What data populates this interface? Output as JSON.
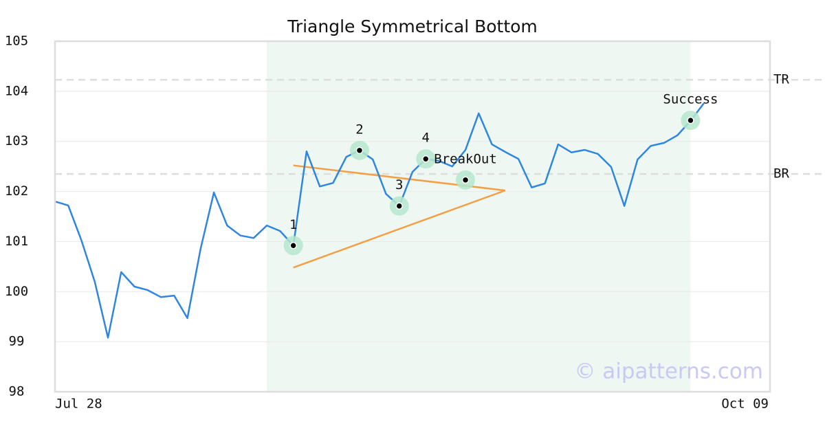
{
  "chart_data": {
    "type": "line",
    "title": "Triangle Symmetrical Bottom",
    "categories": [
      "Jul 28",
      null,
      null,
      null,
      null,
      null,
      null,
      null,
      null,
      null,
      null,
      null,
      null,
      null,
      null,
      null,
      null,
      null,
      null,
      null,
      null,
      null,
      null,
      null,
      null,
      null,
      null,
      null,
      null,
      null,
      null,
      null,
      null,
      null,
      null,
      null,
      null,
      null,
      null,
      null,
      null,
      null,
      null,
      null,
      null,
      null,
      null,
      null,
      null,
      null,
      null,
      null,
      null,
      null,
      "Oct 09"
    ],
    "series": [
      {
        "color": "#2e86de",
        "values": [
          101.8,
          101.72,
          101.02,
          100.2,
          99.08,
          100.39,
          100.1,
          100.03,
          99.89,
          99.92,
          99.47,
          100.86,
          101.98,
          101.32,
          101.12,
          101.07,
          101.32,
          101.21,
          100.92,
          102.8,
          102.1,
          102.17,
          102.69,
          102.82,
          102.64,
          101.95,
          101.71,
          102.39,
          102.65,
          102.61,
          102.5,
          102.83,
          103.56,
          102.94,
          102.79,
          102.65,
          102.08,
          102.16,
          102.94,
          102.78,
          102.83,
          102.75,
          102.49,
          101.71,
          102.64,
          102.91,
          102.97,
          103.12,
          103.41,
          103.76,
          null,
          null,
          null,
          null,
          null
        ]
      }
    ],
    "ylim": [
      98,
      105
    ],
    "yticks": [
      98,
      99,
      100,
      101,
      102,
      103,
      104,
      105
    ],
    "grid": true,
    "highlight": [
      16,
      48
    ],
    "highlight_color": "#eef7f2",
    "reference_lines": [
      {
        "label": "TR",
        "value": 104.23
      },
      {
        "label": "BR",
        "value": 102.35
      }
    ],
    "trend_lines": {
      "color": "#f59e42",
      "x": [
        18,
        34
      ],
      "upper": [
        102.52,
        102.02
      ],
      "lower": [
        100.48,
        102.02
      ]
    },
    "markers": {
      "labels": [
        "1",
        "2",
        "3",
        "4",
        "BreakOut",
        "Success"
      ],
      "x": [
        18,
        23,
        26,
        28,
        31,
        48
      ],
      "values": [
        100.92,
        102.82,
        101.71,
        102.65,
        102.23,
        103.42
      ]
    },
    "watermark": "© aipatterns.com"
  }
}
